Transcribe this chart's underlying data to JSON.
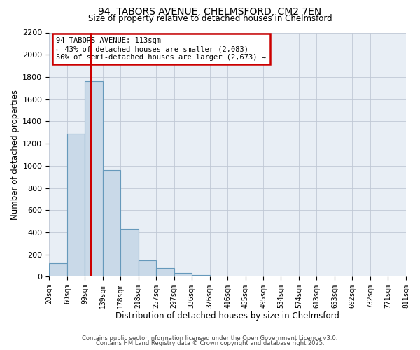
{
  "title": "94, TABORS AVENUE, CHELMSFORD, CM2 7EN",
  "subtitle": "Size of property relative to detached houses in Chelmsford",
  "xlabel": "Distribution of detached houses by size in Chelmsford",
  "ylabel": "Number of detached properties",
  "bar_color": "#c9d9e8",
  "bar_edge_color": "#6699bb",
  "bg_color": "#ffffff",
  "plot_bg_color": "#e8eef5",
  "grid_color": "#c0c8d5",
  "annotation_box_color": "#cc0000",
  "annotation_title": "94 TABORS AVENUE: 113sqm",
  "annotation_line1": "← 43% of detached houses are smaller (2,083)",
  "annotation_line2": "56% of semi-detached houses are larger (2,673) →",
  "red_line_x": 113,
  "footnote1": "Contains HM Land Registry data © Crown copyright and database right 2025.",
  "footnote2": "Contains public sector information licensed under the Open Government Licence v3.0.",
  "bin_edges": [
    20,
    60,
    99,
    139,
    178,
    218,
    257,
    297,
    336,
    376,
    416,
    455,
    495,
    534,
    574,
    613,
    653,
    692,
    732,
    771,
    811
  ],
  "bin_counts": [
    120,
    1290,
    1760,
    960,
    430,
    150,
    75,
    35,
    18,
    0,
    0,
    0,
    0,
    0,
    0,
    0,
    0,
    0,
    0,
    0
  ],
  "ylim": [
    0,
    2200
  ],
  "yticks": [
    0,
    200,
    400,
    600,
    800,
    1000,
    1200,
    1400,
    1600,
    1800,
    2000,
    2200
  ]
}
